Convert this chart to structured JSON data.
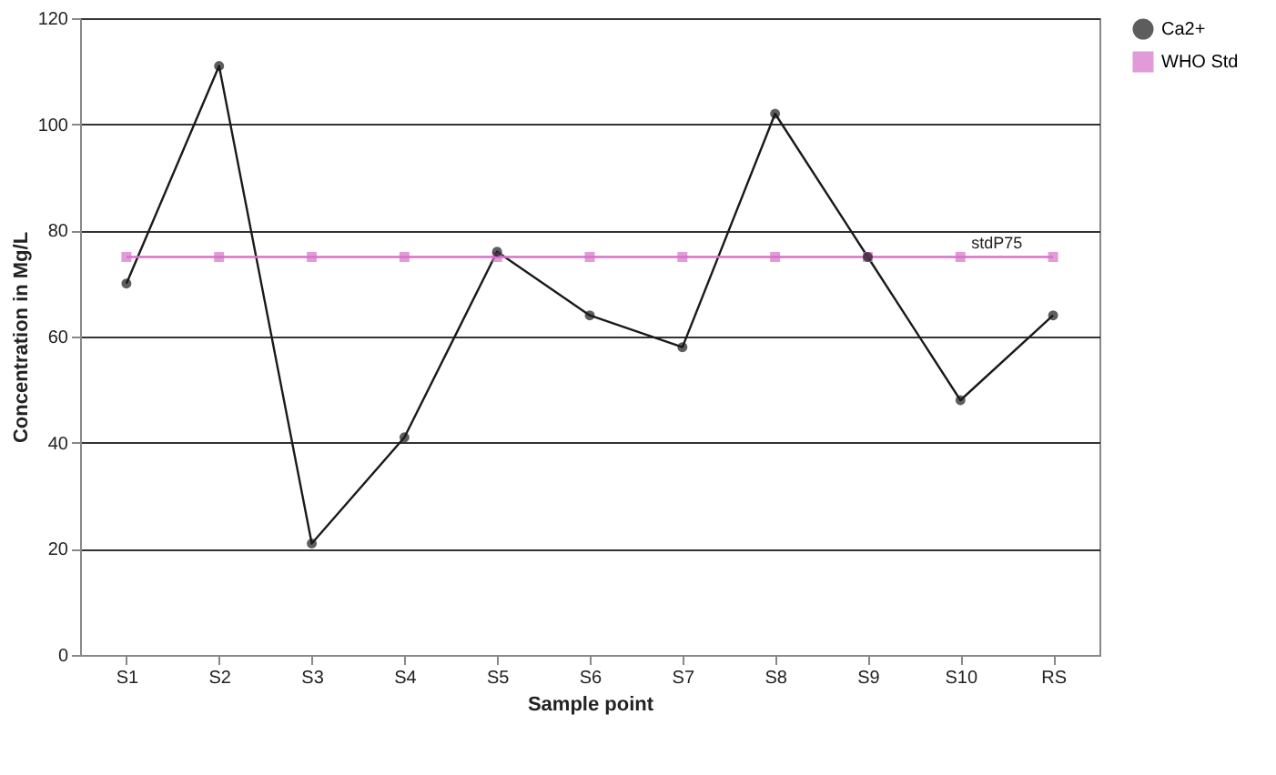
{
  "chart_data": {
    "type": "line",
    "xlabel": "Sample point",
    "ylabel": "Concentration in Mg/L",
    "categories": [
      "S1",
      "S2",
      "S3",
      "S4",
      "S5",
      "S6",
      "S7",
      "S8",
      "S9",
      "S10",
      "RS"
    ],
    "series": [
      {
        "name": "Ca2+",
        "color": "#1a1a1a",
        "marker": "circle",
        "values": [
          70,
          111,
          21,
          41,
          76,
          64,
          58,
          102,
          75,
          48,
          64
        ]
      },
      {
        "name": "WHO Std",
        "color": "#d670c8",
        "marker": "square",
        "values": [
          75,
          75,
          75,
          75,
          75,
          75,
          75,
          75,
          75,
          75,
          75
        ]
      }
    ],
    "ylim": [
      0,
      120
    ],
    "yticks": [
      0,
      20,
      40,
      60,
      80,
      100,
      120
    ],
    "grid": "y",
    "legend": "right",
    "annotations": [
      {
        "text": "stdP75",
        "x": "S10",
        "y": 75
      }
    ]
  }
}
